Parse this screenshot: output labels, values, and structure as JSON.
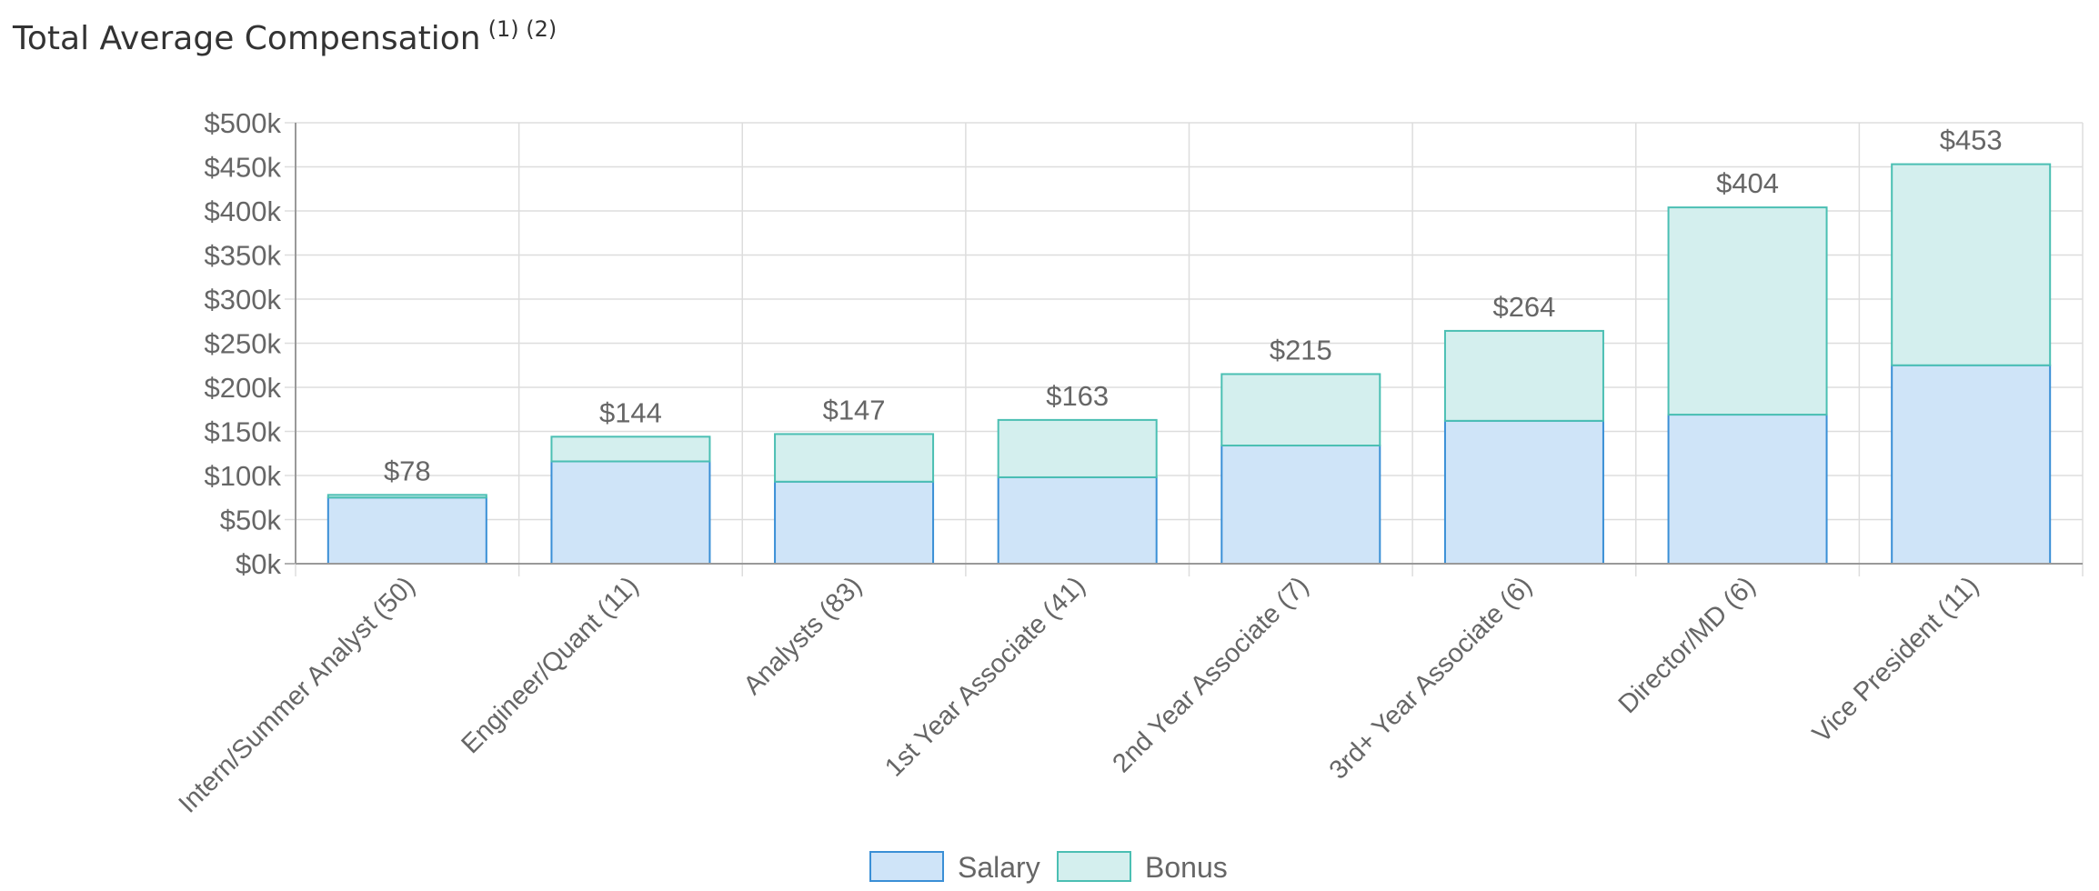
{
  "title": "Total Average Compensation",
  "title_notes": "(1) (2)",
  "colors": {
    "salary_fill": "#cfe4f8",
    "salary_stroke": "#3a8fd6",
    "bonus_fill": "#d4efee",
    "bonus_stroke": "#4bbfb3",
    "grid": "#dddddd",
    "axis": "#999999",
    "text": "#666666"
  },
  "chart_data": {
    "type": "bar",
    "stacked": true,
    "categories": [
      "Intern/Summer Analyst (50)",
      "Engineer/Quant (11)",
      "Analysts (83)",
      "1st Year Associate (41)",
      "2nd Year Associate (7)",
      "3rd+ Year Associate (6)",
      "Director/MD (6)",
      "Vice President (11)"
    ],
    "series": [
      {
        "name": "Salary",
        "values": [
          75,
          116,
          93,
          98,
          134,
          162,
          169,
          225
        ]
      },
      {
        "name": "Bonus",
        "values": [
          3,
          28,
          54,
          65,
          81,
          102,
          235,
          228
        ]
      }
    ],
    "totals": [
      "$78",
      "$144",
      "$147",
      "$163",
      "$215",
      "$264",
      "$404",
      "$453"
    ],
    "y_ticks": [
      "$0k",
      "$50k",
      "$100k",
      "$150k",
      "$200k",
      "$250k",
      "$300k",
      "$350k",
      "$400k",
      "$450k",
      "$500k"
    ],
    "ylim": [
      0,
      500
    ],
    "grid": true,
    "legend_position": "bottom"
  }
}
